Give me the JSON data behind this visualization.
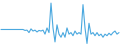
{
  "y": [
    0,
    0,
    0,
    0,
    0,
    0,
    0,
    0,
    0,
    0,
    0,
    0,
    -0.3,
    -0.2,
    -1.0,
    0.2,
    -0.5,
    -0.2,
    -0.8,
    -0.3,
    -0.5,
    -0.2,
    -1.5,
    0.5,
    -1.0,
    8.5,
    0.5,
    -4.0,
    1.5,
    -1.5,
    -2.5,
    -1.0,
    -2.5,
    0.5,
    -1.5,
    -1.0,
    -2.0,
    -0.5,
    -1.5,
    -1.0,
    -1.5,
    8.0,
    0.5,
    -4.5,
    2.0,
    -1.5,
    -1.0,
    -2.0,
    -1.0,
    -2.0,
    -1.5,
    -2.5,
    -1.5,
    -2.0,
    -1.2,
    -1.8,
    -1.0,
    -0.5,
    -1.5,
    -1.0
  ],
  "line_color": "#4aa8df",
  "linewidth": 0.8,
  "background_color": "#ffffff"
}
